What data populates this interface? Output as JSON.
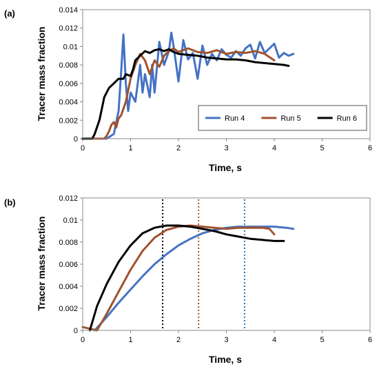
{
  "chart_data": [
    {
      "panel": "(a)",
      "type": "line",
      "xlabel": "Time, s",
      "ylabel": "Tracer mass fraction",
      "xlim": [
        0,
        6
      ],
      "ylim": [
        0,
        0.014
      ],
      "xticks": [
        "0",
        "1",
        "2",
        "3",
        "4",
        "5",
        "6"
      ],
      "yticks": [
        "0",
        "0.002",
        "0.004",
        "0.006",
        "0.008",
        "0.01",
        "0.012",
        "0.014"
      ],
      "grid": false,
      "legend": "bottom-right",
      "series": [
        {
          "name": "Run 4",
          "color": "#4472C4",
          "x": [
            0,
            0.5,
            0.65,
            0.75,
            0.8,
            0.85,
            0.9,
            0.95,
            1.0,
            1.1,
            1.2,
            1.25,
            1.3,
            1.4,
            1.45,
            1.5,
            1.6,
            1.7,
            1.8,
            1.85,
            1.9,
            2.0,
            2.1,
            2.2,
            2.3,
            2.4,
            2.5,
            2.6,
            2.7,
            2.8,
            2.9,
            3.0,
            3.1,
            3.2,
            3.3,
            3.4,
            3.5,
            3.6,
            3.7,
            3.8,
            3.9,
            4.0,
            4.1,
            4.2,
            4.3,
            4.4
          ],
          "y": [
            0,
            0,
            0.0005,
            0.003,
            0.007,
            0.0113,
            0.006,
            0.003,
            0.005,
            0.004,
            0.008,
            0.005,
            0.007,
            0.0045,
            0.008,
            0.005,
            0.0105,
            0.008,
            0.0095,
            0.0115,
            0.01,
            0.0062,
            0.0107,
            0.0086,
            0.0093,
            0.0065,
            0.0101,
            0.008,
            0.0092,
            0.0085,
            0.0097,
            0.0091,
            0.0088,
            0.0095,
            0.009,
            0.0098,
            0.0102,
            0.0087,
            0.0105,
            0.0093,
            0.0098,
            0.0103,
            0.0088,
            0.0093,
            0.009,
            0.0092
          ]
        },
        {
          "name": "Run 5",
          "color": "#A0522D",
          "x": [
            0,
            0.45,
            0.5,
            0.55,
            0.6,
            0.65,
            0.7,
            0.75,
            0.8,
            0.9,
            1.0,
            1.1,
            1.2,
            1.3,
            1.4,
            1.5,
            1.6,
            1.7,
            1.8,
            1.9,
            2.0,
            2.2,
            2.4,
            2.6,
            2.8,
            3.0,
            3.2,
            3.4,
            3.6,
            3.8,
            4.0
          ],
          "y": [
            0,
            0,
            0.0003,
            0.0008,
            0.0015,
            0.0018,
            0.0012,
            0.0022,
            0.0025,
            0.004,
            0.0065,
            0.008,
            0.0092,
            0.0085,
            0.007,
            0.0085,
            0.0078,
            0.009,
            0.0095,
            0.0098,
            0.0094,
            0.0098,
            0.0094,
            0.0093,
            0.0096,
            0.0092,
            0.0094,
            0.0093,
            0.0095,
            0.0092,
            0.0085
          ]
        },
        {
          "name": "Run 6",
          "color": "#000000",
          "x": [
            0,
            0.2,
            0.25,
            0.35,
            0.45,
            0.55,
            0.65,
            0.75,
            0.85,
            0.9,
            1.0,
            1.05,
            1.1,
            1.2,
            1.3,
            1.4,
            1.5,
            1.6,
            1.7,
            1.8,
            1.9,
            2.0,
            2.2,
            2.4,
            2.6,
            2.8,
            3.0,
            3.2,
            3.4,
            3.6,
            3.8,
            4.0,
            4.2,
            4.3
          ],
          "y": [
            0,
            0,
            0.0005,
            0.002,
            0.0045,
            0.0055,
            0.006,
            0.0065,
            0.0065,
            0.007,
            0.0068,
            0.0075,
            0.0085,
            0.009,
            0.0095,
            0.0093,
            0.0096,
            0.0097,
            0.0095,
            0.0097,
            0.0094,
            0.0092,
            0.0091,
            0.009,
            0.0088,
            0.0087,
            0.0086,
            0.0086,
            0.0085,
            0.0083,
            0.0082,
            0.0081,
            0.008,
            0.0079
          ]
        }
      ]
    },
    {
      "panel": "(b)",
      "type": "line",
      "xlabel": "Time, s",
      "ylabel": "Tracer mass fraction",
      "xlim": [
        0,
        6
      ],
      "ylim": [
        0,
        0.012
      ],
      "xticks": [
        "0",
        "1",
        "2",
        "3",
        "4",
        "5",
        "6"
      ],
      "yticks": [
        "0",
        "0.002",
        "0.004",
        "0.006",
        "0.008",
        "0.01",
        "0.012"
      ],
      "grid": false,
      "vertical_markers": [
        {
          "x": 1.67,
          "color": "#000000"
        },
        {
          "x": 2.42,
          "color": "#A0522D"
        },
        {
          "x": 3.38,
          "color": "#2E75B6"
        }
      ],
      "series": [
        {
          "name": "Run 4",
          "color": "#4472C4",
          "x": [
            0.25,
            0.5,
            0.75,
            1.0,
            1.25,
            1.5,
            1.75,
            2.0,
            2.25,
            2.5,
            2.75,
            3.0,
            3.25,
            3.5,
            3.75,
            4.0,
            4.25,
            4.4
          ],
          "y": [
            0,
            0.0012,
            0.0025,
            0.0037,
            0.0049,
            0.006,
            0.0069,
            0.0077,
            0.0083,
            0.0088,
            0.0091,
            0.0093,
            0.0094,
            0.0094,
            0.0094,
            0.0094,
            0.0093,
            0.0092
          ]
        },
        {
          "name": "Run 5",
          "color": "#A0522D",
          "x": [
            0,
            0.1,
            0.2,
            0.3,
            0.5,
            0.75,
            1.0,
            1.25,
            1.5,
            1.75,
            2.0,
            2.25,
            2.5,
            2.75,
            3.0,
            3.25,
            3.5,
            3.75,
            3.9,
            4.0
          ],
          "y": [
            0.0003,
            0.0002,
            0.0001,
            0,
            0.0015,
            0.0035,
            0.0055,
            0.0072,
            0.0084,
            0.0091,
            0.0094,
            0.0095,
            0.0094,
            0.0093,
            0.0092,
            0.0093,
            0.0093,
            0.0093,
            0.0092,
            0.0087
          ]
        },
        {
          "name": "Run 6",
          "color": "#000000",
          "x": [
            0.15,
            0.3,
            0.5,
            0.75,
            1.0,
            1.25,
            1.5,
            1.75,
            2.0,
            2.25,
            2.5,
            2.75,
            3.0,
            3.25,
            3.5,
            3.75,
            4.0,
            4.2
          ],
          "y": [
            0,
            0.0022,
            0.0042,
            0.0062,
            0.0077,
            0.0088,
            0.0093,
            0.0095,
            0.0095,
            0.0094,
            0.0092,
            0.009,
            0.0087,
            0.0085,
            0.0083,
            0.0082,
            0.0081,
            0.0081
          ]
        }
      ]
    }
  ]
}
